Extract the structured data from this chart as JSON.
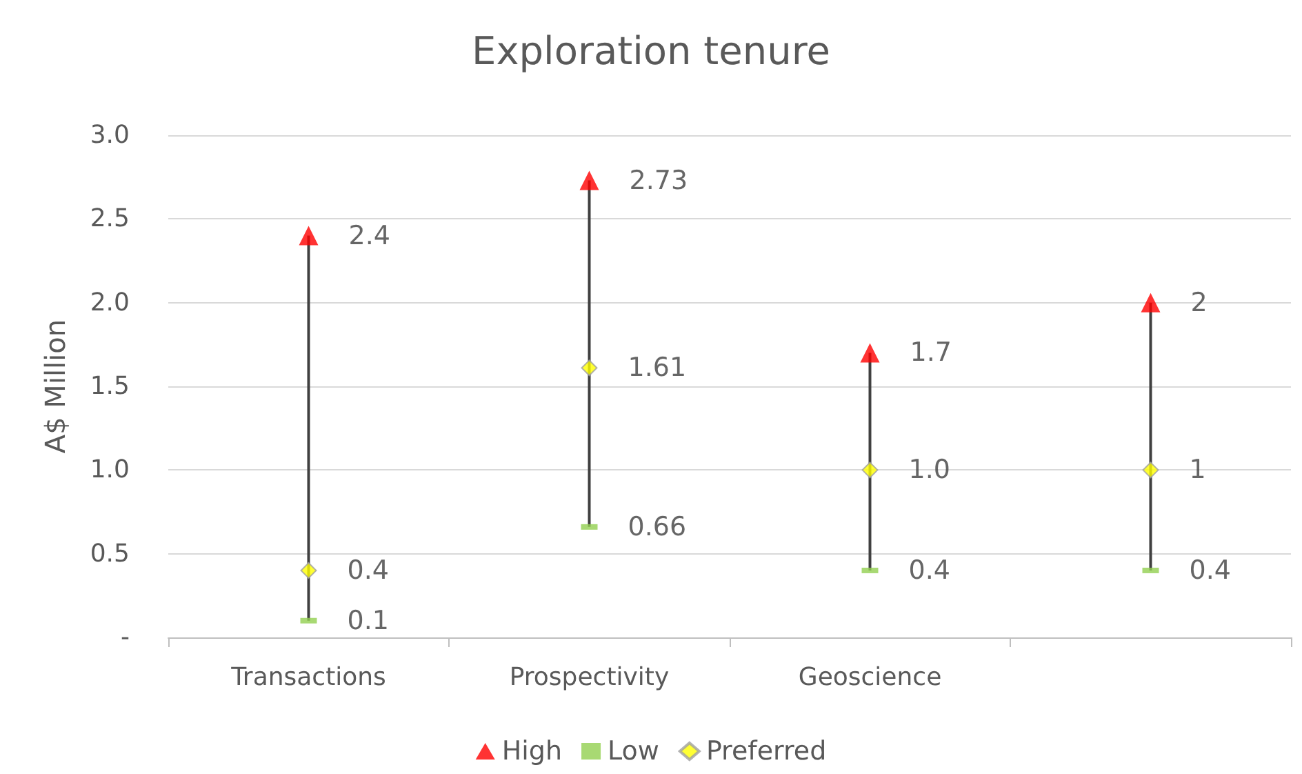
{
  "chart_data": {
    "type": "scatter",
    "title": "Exploration tenure",
    "ylabel": "A$ Million",
    "categories": [
      "Transactions",
      "Prospectivity",
      "Geoscience",
      null
    ],
    "series": [
      {
        "name": "High",
        "color": "#ff0000",
        "marker": "triangle",
        "values": [
          2.4,
          2.73,
          1.7,
          2
        ],
        "value_labels": [
          "2.4",
          "2.73",
          "1.7",
          "2"
        ]
      },
      {
        "name": "Low",
        "color": "#92d050",
        "marker": "square",
        "values": [
          0.1,
          0.66,
          0.4,
          0.4
        ],
        "value_labels": [
          "0.1",
          "0.66",
          "0.4",
          "0.4"
        ]
      },
      {
        "name": "Preferred",
        "color": "#ffff00",
        "marker": "diamond",
        "values": [
          0.4,
          1.61,
          1.0,
          1
        ],
        "value_labels": [
          "0.4",
          "1.61",
          "1.0",
          "1"
        ]
      }
    ],
    "ylim": [
      0,
      3
    ],
    "yticks": [
      {
        "value": 0,
        "label": "-"
      },
      0.5,
      {
        "value": 1,
        "label": "1.0"
      },
      1.5,
      {
        "value": 2,
        "label": "2.0"
      },
      2.5,
      {
        "value": 3,
        "label": "3.0"
      }
    ],
    "grid": "y",
    "legend": "bottom"
  }
}
